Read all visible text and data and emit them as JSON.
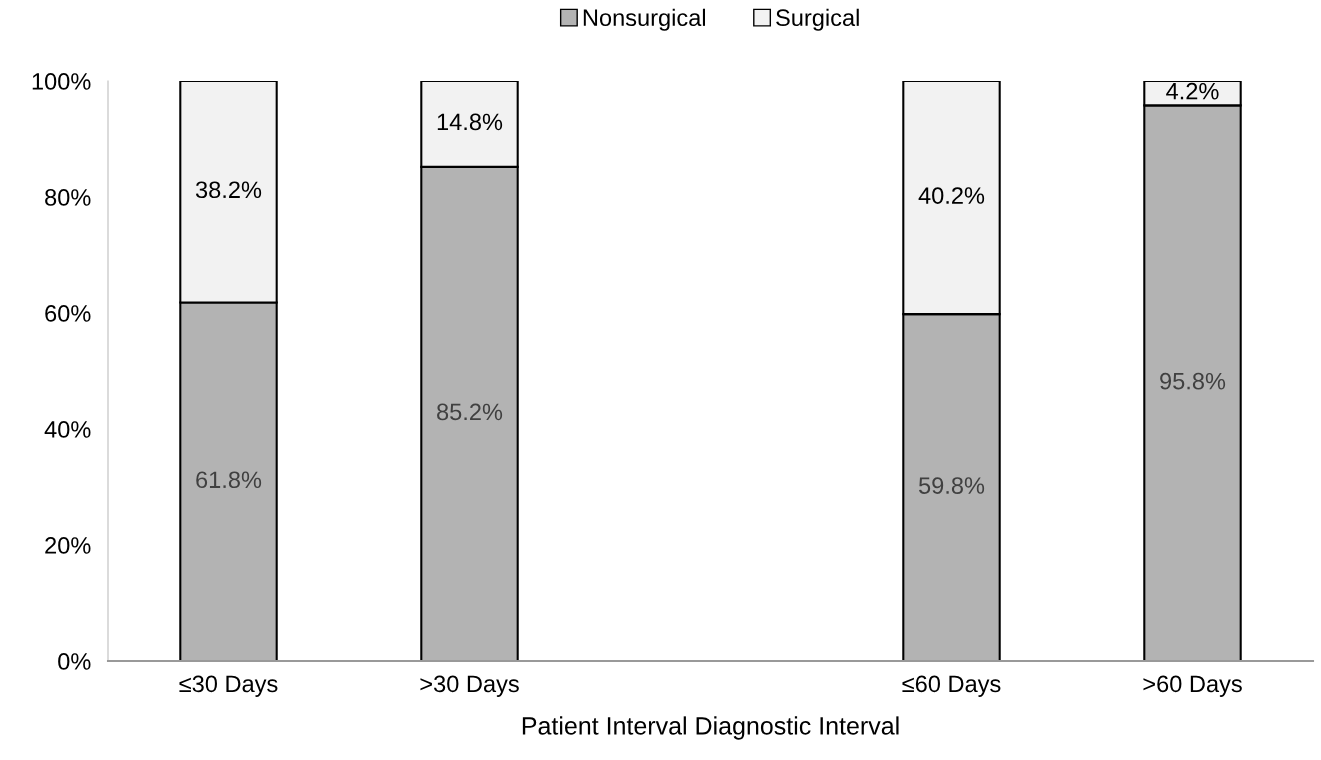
{
  "chart_data": {
    "type": "bar",
    "stacked": true,
    "xlabel": "Patient Interval Diagnostic Interval",
    "categories": [
      "≤30 Days",
      ">30 Days",
      null,
      "≤60 Days",
      ">60 Days"
    ],
    "series": [
      {
        "name": "Nonsurgical",
        "color": "#b3b3b3",
        "values": [
          61.8,
          85.2,
          null,
          59.8,
          95.8
        ],
        "value_labels": [
          "61.8%",
          "85.2%",
          null,
          "59.8%",
          "95.8%"
        ]
      },
      {
        "name": "Surgical",
        "color": "#f2f2f2",
        "values": [
          38.2,
          14.8,
          null,
          40.2,
          4.2
        ],
        "value_labels": [
          "38.2%",
          "14.8%",
          null,
          "40.2%",
          "4.2%"
        ]
      }
    ],
    "ylim": [
      0,
      100
    ],
    "yticks": [
      {
        "value": 0,
        "label": "0%"
      },
      {
        "value": 20,
        "label": "20%"
      },
      {
        "value": 40,
        "label": "40%"
      },
      {
        "value": 60,
        "label": "60%"
      },
      {
        "value": 80,
        "label": "80%"
      },
      {
        "value": 100,
        "label": "100%"
      }
    ],
    "legend": "top",
    "grid": false
  }
}
